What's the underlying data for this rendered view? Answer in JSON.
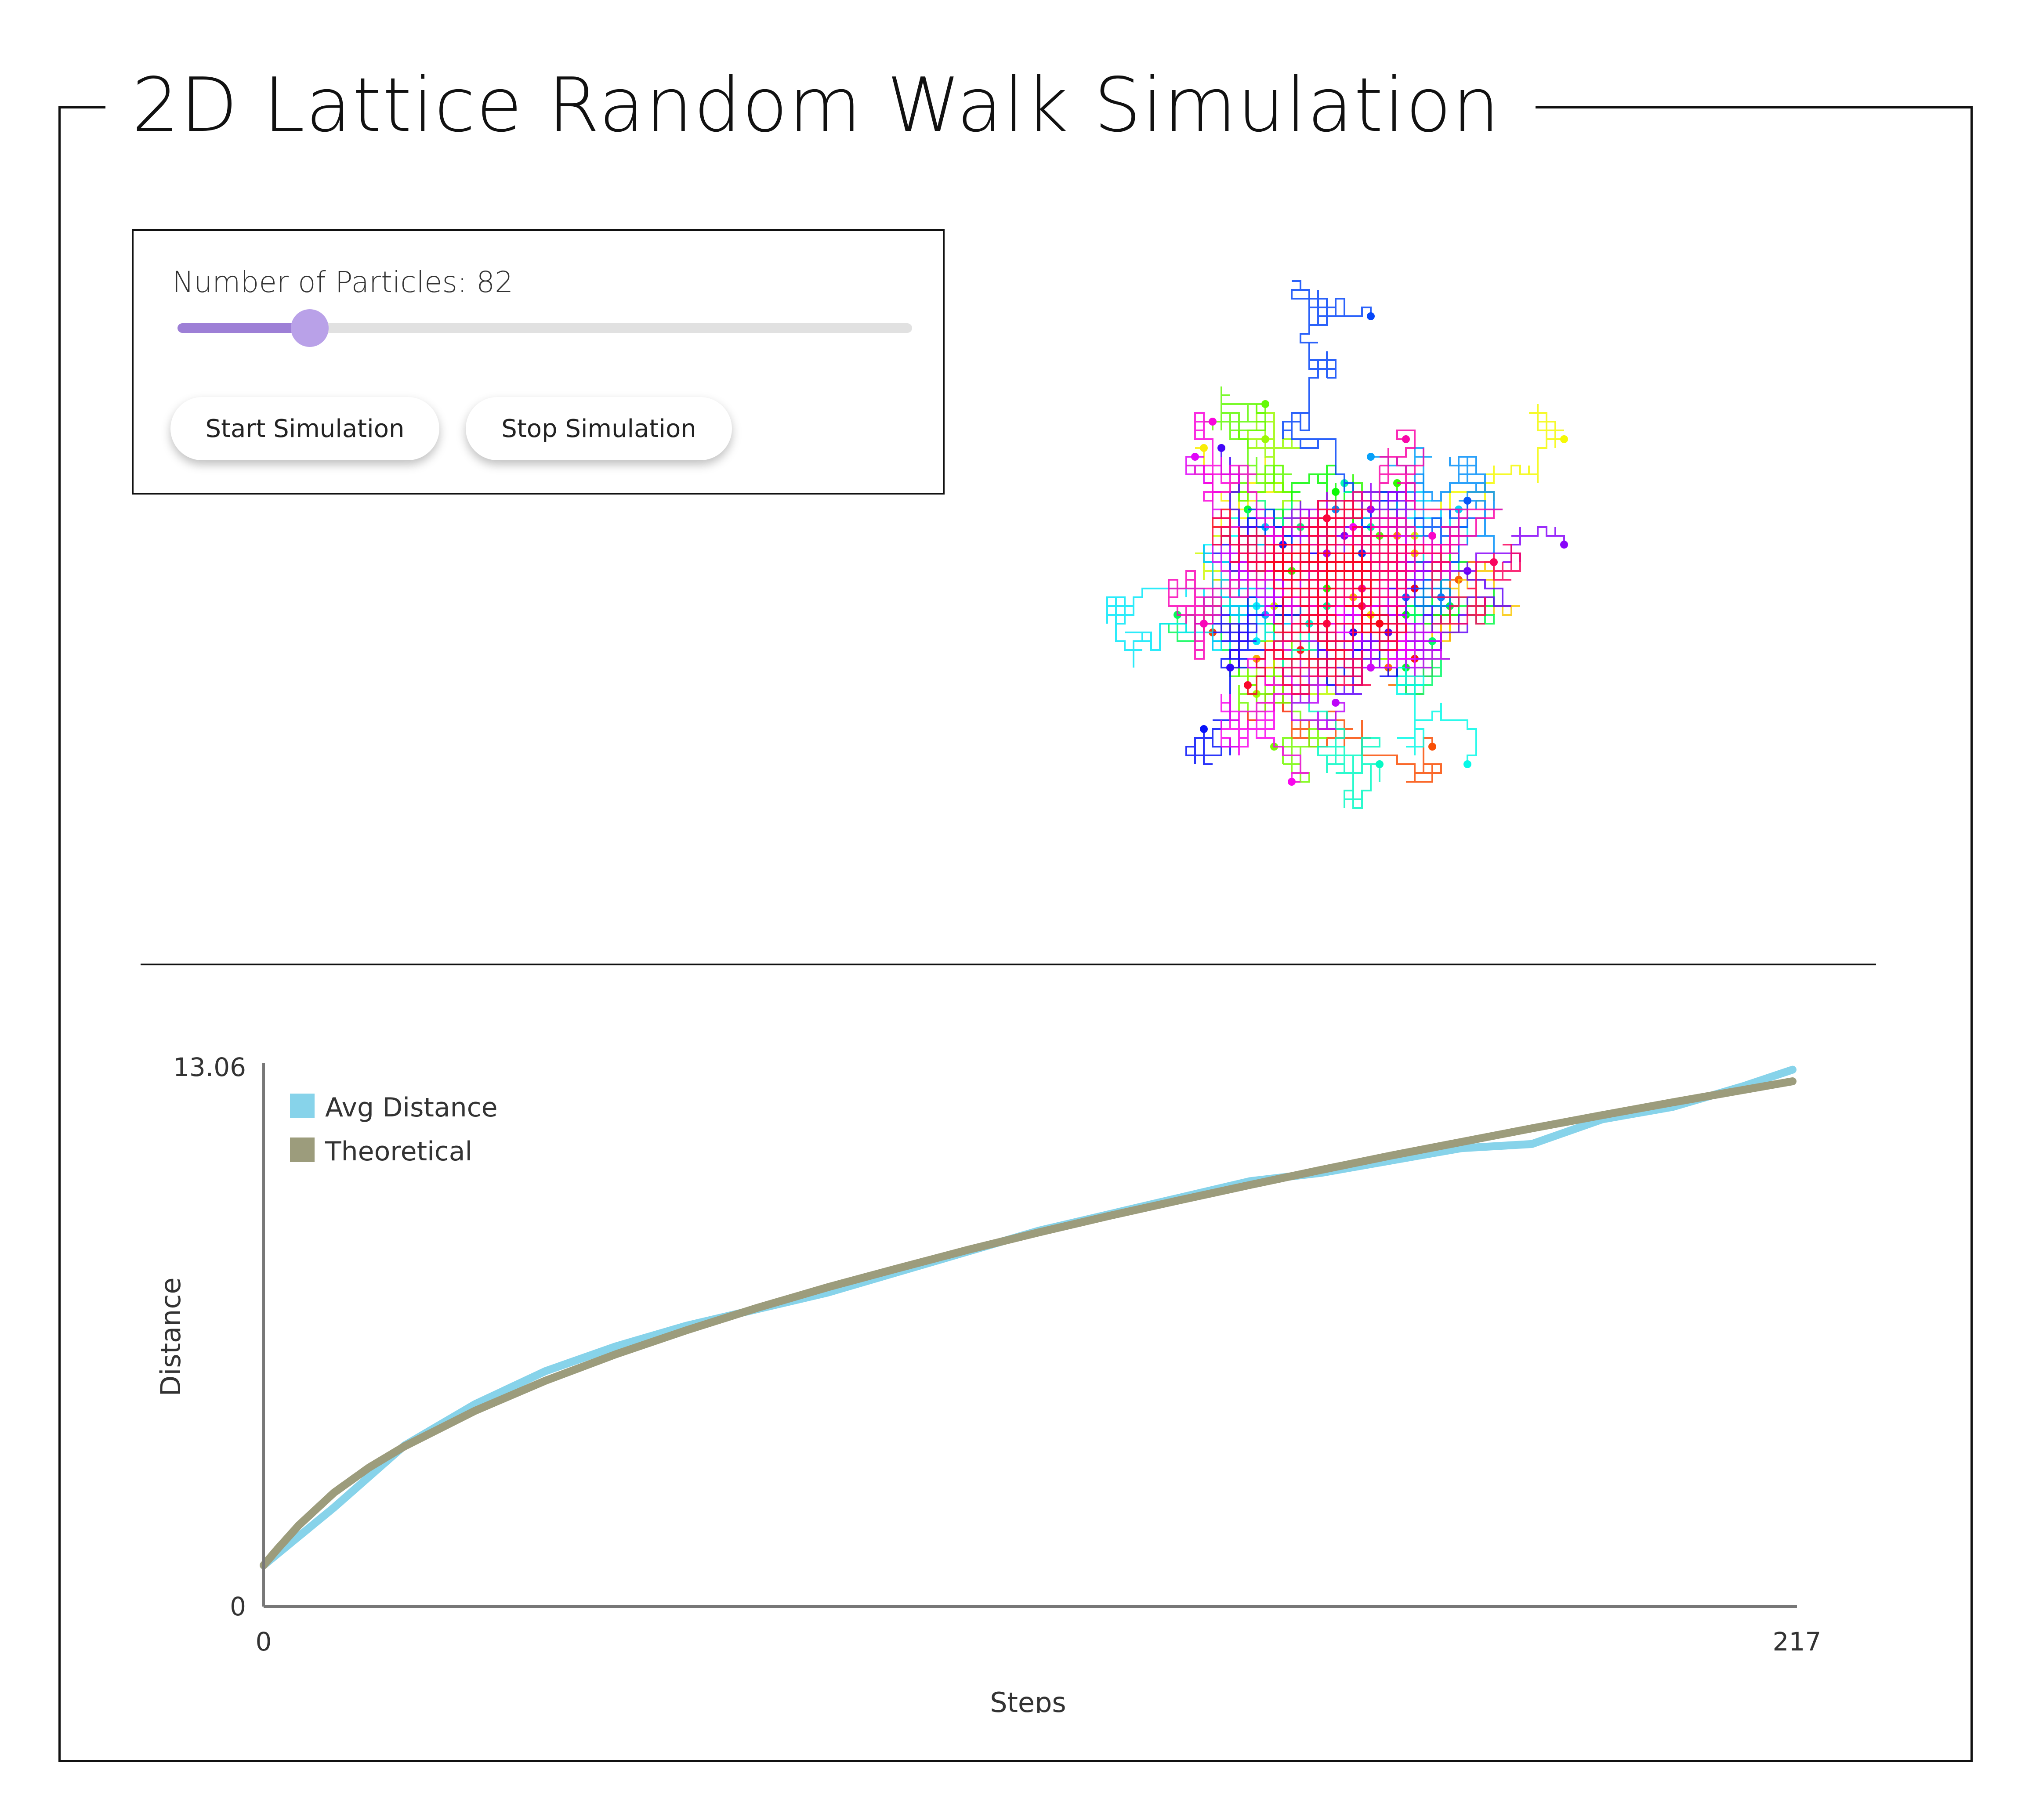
{
  "page": {
    "title": "2D Lattice Random Walk Simulation"
  },
  "controls": {
    "particles_label": "Number of Particles: 82",
    "particles_value": 82,
    "particles_fraction": 0.18,
    "start_label": "Start Simulation",
    "stop_label": "Stop Simulation",
    "slider_fill_color": "#9d7fd6",
    "slider_thumb_color": "#b9a1e8"
  },
  "walk": {
    "particle_count": 82,
    "line_width": 4
  },
  "chart_data": {
    "type": "line",
    "title": "",
    "xlabel": "Steps",
    "ylabel": "Distance",
    "xlim": [
      0,
      217
    ],
    "ylim": [
      0,
      13.06
    ],
    "x_ticks": [
      "0",
      "217"
    ],
    "y_ticks": [
      "0",
      "13.06"
    ],
    "legend": "top-left",
    "grid": false,
    "series": [
      {
        "name": "Avg Distance",
        "color": "#87d3ea",
        "x": [
          0,
          10,
          20,
          30,
          40,
          50,
          60,
          70,
          80,
          90,
          100,
          110,
          120,
          130,
          140,
          150,
          160,
          170,
          180,
          190,
          200,
          210,
          217
        ],
        "y": [
          1.0,
          2.4,
          3.9,
          4.9,
          5.7,
          6.3,
          6.8,
          7.2,
          7.6,
          8.1,
          8.6,
          9.1,
          9.5,
          9.9,
          10.3,
          10.5,
          10.8,
          11.1,
          11.2,
          11.8,
          12.1,
          12.6,
          13.0
        ]
      },
      {
        "name": "Theoretical",
        "color": "#9c9c7c",
        "x": [
          0,
          2,
          5,
          10,
          15,
          20,
          30,
          40,
          50,
          60,
          70,
          80,
          90,
          100,
          110,
          120,
          130,
          140,
          150,
          160,
          170,
          180,
          190,
          200,
          210,
          217
        ],
        "y": [
          1.0,
          1.4,
          1.97,
          2.76,
          3.37,
          3.88,
          4.74,
          5.47,
          6.11,
          6.69,
          7.23,
          7.73,
          8.19,
          8.64,
          9.06,
          9.46,
          9.84,
          10.21,
          10.57,
          10.92,
          11.25,
          11.58,
          11.9,
          12.21,
          12.51,
          12.72
        ]
      }
    ]
  }
}
